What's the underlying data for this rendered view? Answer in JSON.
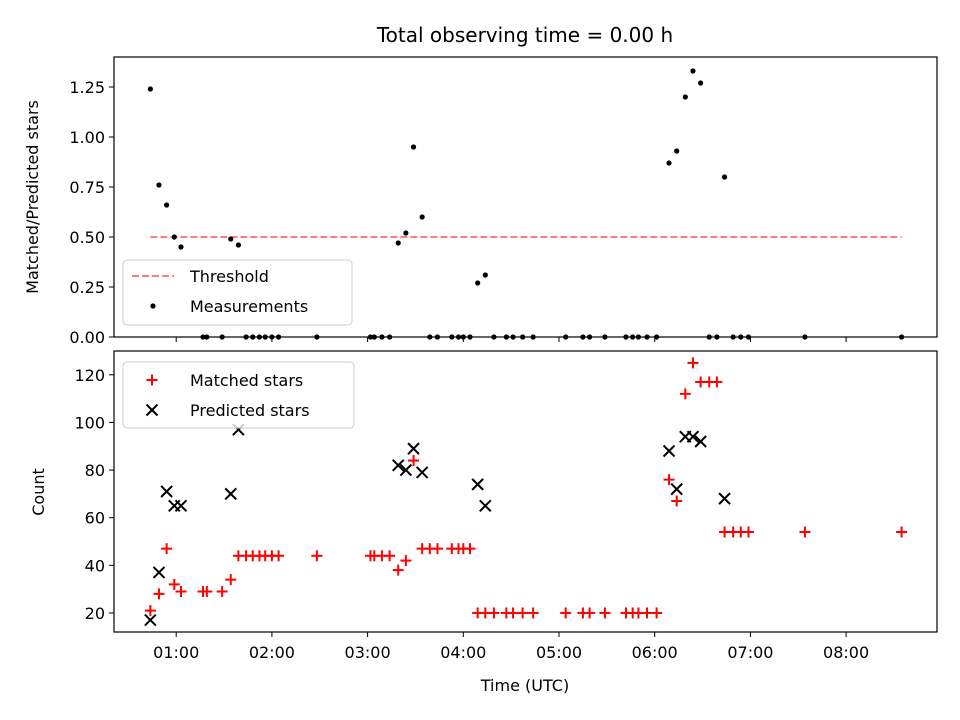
{
  "chart_data": [
    {
      "type": "scatter",
      "title": "Total observing time = 0.00 h",
      "ylabel": "Matched/Predicted stars",
      "xlabel": "",
      "xlim": [
        0.35,
        8.95
      ],
      "ylim": [
        0.0,
        1.4
      ],
      "yticks": [
        0.0,
        0.25,
        0.5,
        0.75,
        1.0,
        1.25
      ],
      "ytick_labels": [
        "0.00",
        "0.25",
        "0.50",
        "0.75",
        "1.00",
        "1.25"
      ],
      "xticks": [
        1,
        2,
        3,
        4,
        5,
        6,
        7,
        8
      ],
      "legend_location": "lower-left",
      "threshold": {
        "name": "Threshold",
        "value": 0.5,
        "x": [
          0.73,
          8.58
        ],
        "color": "#ff7f7f"
      },
      "measurements": {
        "name": "Measurements",
        "color": "#000000",
        "points": [
          [
            0.73,
            1.24
          ],
          [
            0.82,
            0.76
          ],
          [
            0.9,
            0.66
          ],
          [
            0.98,
            0.5
          ],
          [
            1.05,
            0.45
          ],
          [
            1.57,
            0.49
          ],
          [
            1.65,
            0.46
          ],
          [
            3.32,
            0.47
          ],
          [
            3.4,
            0.52
          ],
          [
            3.48,
            0.95
          ],
          [
            3.57,
            0.6
          ],
          [
            4.15,
            0.27
          ],
          [
            4.23,
            0.31
          ],
          [
            6.15,
            0.87
          ],
          [
            6.23,
            0.93
          ],
          [
            6.32,
            1.2
          ],
          [
            6.4,
            1.33
          ],
          [
            6.48,
            1.27
          ],
          [
            6.73,
            0.8
          ],
          [
            1.28,
            0
          ],
          [
            1.32,
            0
          ],
          [
            1.48,
            0
          ],
          [
            1.73,
            0
          ],
          [
            1.8,
            0
          ],
          [
            1.87,
            0
          ],
          [
            1.93,
            0
          ],
          [
            2.0,
            0
          ],
          [
            2.07,
            0
          ],
          [
            2.47,
            0
          ],
          [
            3.03,
            0
          ],
          [
            3.07,
            0
          ],
          [
            3.15,
            0
          ],
          [
            3.23,
            0
          ],
          [
            3.65,
            0
          ],
          [
            3.73,
            0
          ],
          [
            3.88,
            0
          ],
          [
            3.95,
            0
          ],
          [
            4.0,
            0
          ],
          [
            4.07,
            0
          ],
          [
            4.32,
            0
          ],
          [
            4.45,
            0
          ],
          [
            4.52,
            0
          ],
          [
            4.62,
            0
          ],
          [
            4.73,
            0
          ],
          [
            5.07,
            0
          ],
          [
            5.25,
            0
          ],
          [
            5.32,
            0
          ],
          [
            5.48,
            0
          ],
          [
            5.7,
            0
          ],
          [
            5.77,
            0
          ],
          [
            5.83,
            0
          ],
          [
            5.92,
            0
          ],
          [
            6.02,
            0
          ],
          [
            6.57,
            0
          ],
          [
            6.65,
            0
          ],
          [
            6.82,
            0
          ],
          [
            6.9,
            0
          ],
          [
            6.98,
            0
          ],
          [
            7.57,
            0
          ],
          [
            8.58,
            0
          ]
        ]
      }
    },
    {
      "type": "scatter",
      "title": "",
      "ylabel": "Count",
      "xlabel": "Time (UTC)",
      "xlim": [
        0.35,
        8.95
      ],
      "ylim": [
        12,
        130
      ],
      "yticks": [
        20,
        40,
        60,
        80,
        100,
        120
      ],
      "xticks": [
        1,
        2,
        3,
        4,
        5,
        6,
        7,
        8
      ],
      "xtick_labels": [
        "01:00",
        "02:00",
        "03:00",
        "04:00",
        "05:00",
        "06:00",
        "07:00",
        "08:00"
      ],
      "legend_location": "upper-left",
      "series": [
        {
          "name": "Matched stars",
          "marker": "+",
          "color": "#ff0000",
          "points": [
            [
              0.73,
              21
            ],
            [
              0.82,
              28
            ],
            [
              0.9,
              47
            ],
            [
              0.98,
              32
            ],
            [
              1.05,
              29
            ],
            [
              1.28,
              29
            ],
            [
              1.32,
              29
            ],
            [
              1.48,
              29
            ],
            [
              1.57,
              34
            ],
            [
              1.65,
              44
            ],
            [
              1.73,
              44
            ],
            [
              1.8,
              44
            ],
            [
              1.87,
              44
            ],
            [
              1.93,
              44
            ],
            [
              2.0,
              44
            ],
            [
              2.07,
              44
            ],
            [
              2.47,
              44
            ],
            [
              3.03,
              44
            ],
            [
              3.07,
              44
            ],
            [
              3.15,
              44
            ],
            [
              3.23,
              44
            ],
            [
              3.32,
              38
            ],
            [
              3.4,
              42
            ],
            [
              3.48,
              84
            ],
            [
              3.57,
              47
            ],
            [
              3.65,
              47
            ],
            [
              3.73,
              47
            ],
            [
              3.88,
              47
            ],
            [
              3.95,
              47
            ],
            [
              4.0,
              47
            ],
            [
              4.07,
              47
            ],
            [
              4.15,
              20
            ],
            [
              4.23,
              20
            ],
            [
              4.32,
              20
            ],
            [
              4.45,
              20
            ],
            [
              4.52,
              20
            ],
            [
              4.62,
              20
            ],
            [
              4.73,
              20
            ],
            [
              5.07,
              20
            ],
            [
              5.25,
              20
            ],
            [
              5.32,
              20
            ],
            [
              5.48,
              20
            ],
            [
              5.7,
              20
            ],
            [
              5.77,
              20
            ],
            [
              5.83,
              20
            ],
            [
              5.92,
              20
            ],
            [
              6.02,
              20
            ],
            [
              6.15,
              76
            ],
            [
              6.23,
              67
            ],
            [
              6.32,
              112
            ],
            [
              6.4,
              125
            ],
            [
              6.48,
              117
            ],
            [
              6.57,
              117
            ],
            [
              6.65,
              117
            ],
            [
              6.73,
              54
            ],
            [
              6.82,
              54
            ],
            [
              6.9,
              54
            ],
            [
              6.98,
              54
            ],
            [
              7.57,
              54
            ],
            [
              8.58,
              54
            ]
          ]
        },
        {
          "name": "Predicted stars",
          "marker": "x",
          "color": "#000000",
          "points": [
            [
              0.73,
              17
            ],
            [
              0.82,
              37
            ],
            [
              0.9,
              71
            ],
            [
              0.98,
              65
            ],
            [
              1.05,
              65
            ],
            [
              1.57,
              70
            ],
            [
              1.65,
              97
            ],
            [
              3.32,
              82
            ],
            [
              3.4,
              80
            ],
            [
              3.48,
              89
            ],
            [
              3.57,
              79
            ],
            [
              4.15,
              74
            ],
            [
              4.23,
              65
            ],
            [
              6.15,
              88
            ],
            [
              6.23,
              72
            ],
            [
              6.32,
              94
            ],
            [
              6.4,
              94
            ],
            [
              6.48,
              92
            ],
            [
              6.73,
              68
            ]
          ]
        }
      ]
    }
  ]
}
